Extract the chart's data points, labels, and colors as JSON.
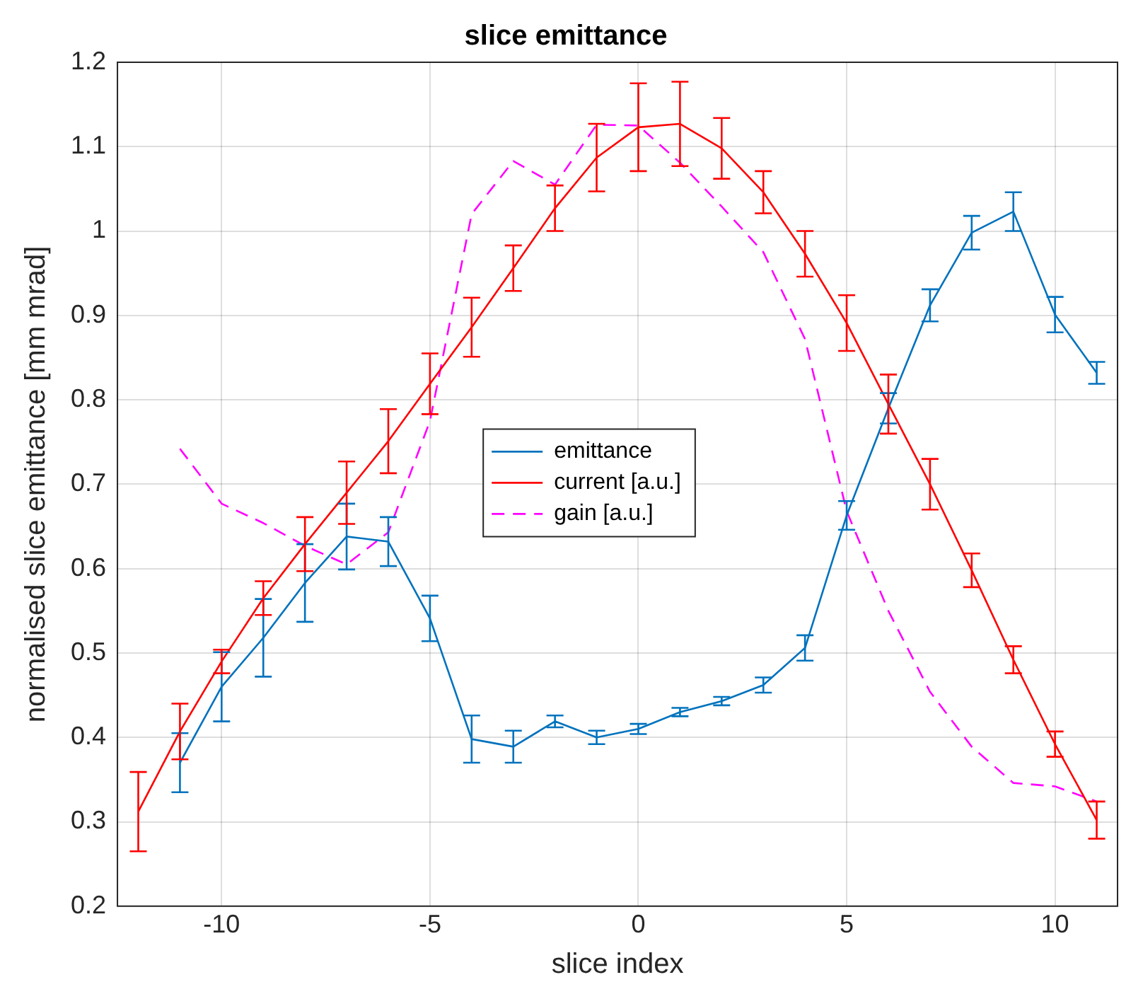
{
  "chart_data": {
    "type": "line",
    "title": "slice emittance",
    "xlabel": "slice index",
    "ylabel": "normalised slice emittance [mm mrad]",
    "xlim": [
      -12.5,
      11.5
    ],
    "xticks": [
      -10,
      -5,
      0,
      5,
      10
    ],
    "ylim": [
      0.2,
      1.2
    ],
    "yticks": [
      0.2,
      0.3,
      0.4,
      0.5,
      0.6,
      0.7,
      0.8,
      0.9,
      1,
      1.1,
      1.2
    ],
    "grid": true,
    "legend": "center",
    "marker": "none",
    "series": [
      {
        "name": "emittance",
        "color": "#0072bd",
        "line_style": "solid",
        "x": [
          -11,
          -10,
          -9,
          -8,
          -7,
          -6,
          -5,
          -4,
          -3,
          -2,
          -1,
          0,
          1,
          2,
          3,
          4,
          5,
          6,
          7,
          8,
          9,
          10,
          11
        ],
        "values": [
          0.37,
          0.46,
          0.518,
          0.583,
          0.638,
          0.632,
          0.541,
          0.398,
          0.389,
          0.419,
          0.4,
          0.41,
          0.43,
          0.443,
          0.462,
          0.506,
          0.663,
          0.79,
          0.912,
          0.998,
          1.023,
          0.901,
          0.832
        ],
        "errors": [
          0.035,
          0.041,
          0.046,
          0.046,
          0.039,
          0.029,
          0.027,
          0.028,
          0.019,
          0.007,
          0.008,
          0.006,
          0.005,
          0.005,
          0.009,
          0.015,
          0.017,
          0.018,
          0.019,
          0.02,
          0.023,
          0.021,
          0.013
        ]
      },
      {
        "name": "current [a.u.]",
        "color": "#ff0000",
        "line_style": "solid",
        "x": [
          -12,
          -11,
          -10,
          -9,
          -8,
          -7,
          -6,
          -5,
          -4,
          -3,
          -2,
          -1,
          0,
          1,
          2,
          3,
          4,
          5,
          6,
          7,
          8,
          9,
          10,
          11
        ],
        "values": [
          0.312,
          0.407,
          0.49,
          0.565,
          0.629,
          0.69,
          0.751,
          0.819,
          0.886,
          0.956,
          1.027,
          1.087,
          1.123,
          1.127,
          1.098,
          1.046,
          0.973,
          0.891,
          0.795,
          0.7,
          0.598,
          0.492,
          0.392,
          0.302
        ],
        "errors": [
          0.047,
          0.033,
          0.014,
          0.02,
          0.032,
          0.037,
          0.038,
          0.036,
          0.035,
          0.027,
          0.027,
          0.04,
          0.052,
          0.05,
          0.036,
          0.025,
          0.027,
          0.033,
          0.035,
          0.03,
          0.02,
          0.016,
          0.015,
          0.022
        ]
      },
      {
        "name": "gain [a.u.]",
        "color": "#ff00ff",
        "line_style": "dashed",
        "x": [
          -11,
          -10,
          -9,
          -8,
          -7,
          -6,
          -5,
          -4,
          -3,
          -2,
          -1,
          0,
          1,
          2,
          3,
          4,
          5,
          6,
          7,
          8,
          9,
          10,
          11
        ],
        "values": [
          0.742,
          0.677,
          0.654,
          0.627,
          0.605,
          0.643,
          0.775,
          1.02,
          1.083,
          1.055,
          1.126,
          1.125,
          1.081,
          1.029,
          0.975,
          0.872,
          0.668,
          0.55,
          0.454,
          0.389,
          0.346,
          0.342,
          0.324
        ]
      }
    ]
  }
}
